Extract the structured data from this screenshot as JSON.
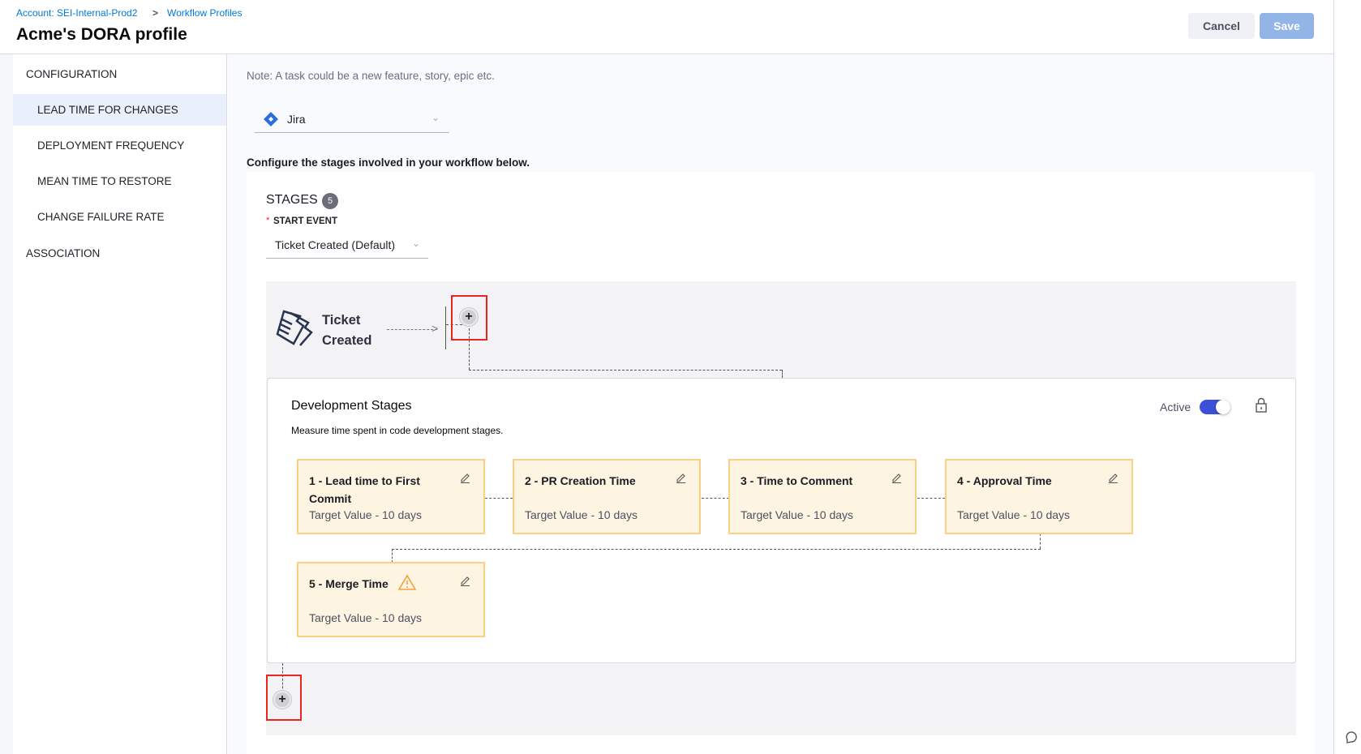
{
  "breadcrumb": {
    "account": "Account: SEI-Internal-Prod2",
    "separator": ">",
    "profiles": "Workflow Profiles"
  },
  "header": {
    "title": "Acme's DORA profile",
    "cancel_label": "Cancel",
    "save_label": "Save"
  },
  "sidebar": {
    "items": [
      {
        "label": "CONFIGURATION"
      },
      {
        "label": "LEAD TIME FOR CHANGES",
        "selected": true
      },
      {
        "label": "DEPLOYMENT FREQUENCY"
      },
      {
        "label": "MEAN TIME TO RESTORE"
      },
      {
        "label": "CHANGE FAILURE RATE"
      },
      {
        "label": "ASSOCIATION"
      }
    ]
  },
  "main": {
    "note": "Note: A task could be a new feature, story, epic etc.",
    "integration": {
      "value": "Jira",
      "icon": "jira-diamond-icon"
    },
    "configure_text": "Configure the stages involved in your workflow below.",
    "stages_label": "STAGES",
    "stages_count": "5",
    "start_event_label": "START EVENT",
    "required_mark": "*",
    "start_event_value": "Ticket Created (Default)",
    "start_node": {
      "line1": "Ticket",
      "line2": "Created",
      "icon": "ticket-icon"
    },
    "dev": {
      "title": "Development Stages",
      "description": "Measure time spent in code development stages.",
      "active_label": "Active",
      "active": true,
      "stages": [
        {
          "title": "1 - Lead time to First Commit",
          "target": "Target Value - 10 days"
        },
        {
          "title": "2 - PR Creation Time",
          "target": "Target Value - 10 days"
        },
        {
          "title": "3 - Time to Comment",
          "target": "Target Value - 10 days"
        },
        {
          "title": "4 - Approval Time",
          "target": "Target Value - 10 days"
        },
        {
          "title": "5 - Merge Time",
          "target": "Target Value - 10 days",
          "warning": true
        }
      ]
    }
  },
  "colors": {
    "accent": "#0278d5",
    "save": "#92b4e6",
    "stage_bg": "#fdf4e2",
    "stage_border": "#fbd084",
    "toggle": "#3b4fd8",
    "warning": "#f5a13c",
    "highlight": "#e8261f"
  }
}
